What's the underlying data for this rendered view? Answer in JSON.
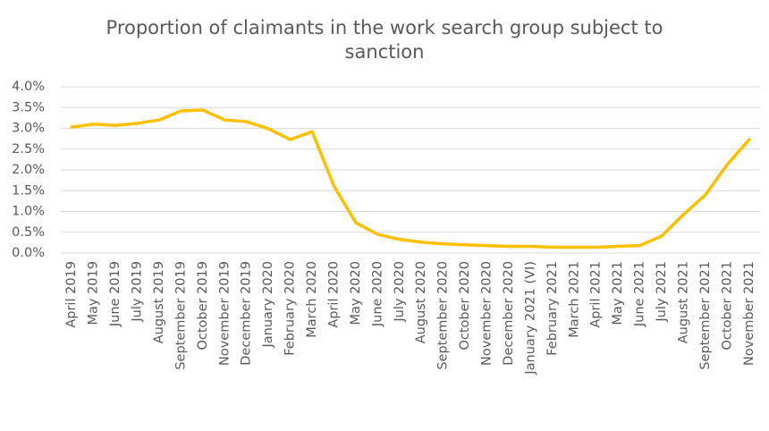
{
  "chart_data": {
    "type": "line",
    "title": "Proportion of claimants in the work search group subject to sanction",
    "categories": [
      "April 2019",
      "May 2019",
      "June 2019",
      "July 2019",
      "August 2019",
      "September 2019",
      "October 2019",
      "November 2019",
      "December 2019",
      "January 2020",
      "February 2020",
      "March 2020",
      "April 2020",
      "May 2020",
      "June 2020",
      "July 2020",
      "August 2020",
      "September 2020",
      "October 2020",
      "November 2020",
      "December 2020",
      "January 2021 (VI)",
      "February 2021",
      "March 2021",
      "April 2021",
      "May 2021",
      "June 2021",
      "July 2021",
      "August 2021",
      "September 2021",
      "October 2021",
      "November 2021"
    ],
    "values": [
      3.03,
      3.1,
      3.07,
      3.12,
      3.2,
      3.42,
      3.44,
      3.2,
      3.16,
      2.99,
      2.73,
      2.92,
      1.61,
      0.73,
      0.45,
      0.33,
      0.26,
      0.22,
      0.2,
      0.18,
      0.16,
      0.16,
      0.14,
      0.14,
      0.14,
      0.16,
      0.18,
      0.41,
      0.93,
      1.4,
      2.13,
      2.73
    ],
    "color": "#ffc000",
    "ylim": [
      0,
      4
    ],
    "yticks": [
      {
        "value": 0,
        "label": "0.0%"
      },
      {
        "value": 0.5,
        "label": "0.5%"
      },
      {
        "value": 1,
        "label": "1.0%"
      },
      {
        "value": 1.5,
        "label": "1.5%"
      },
      {
        "value": 2,
        "label": "2.0%"
      },
      {
        "value": 2.5,
        "label": "2.5%"
      },
      {
        "value": 3,
        "label": "3.0%"
      },
      {
        "value": 3.5,
        "label": "3.5%"
      },
      {
        "value": 4,
        "label": "4.0%"
      }
    ],
    "grid": true
  }
}
